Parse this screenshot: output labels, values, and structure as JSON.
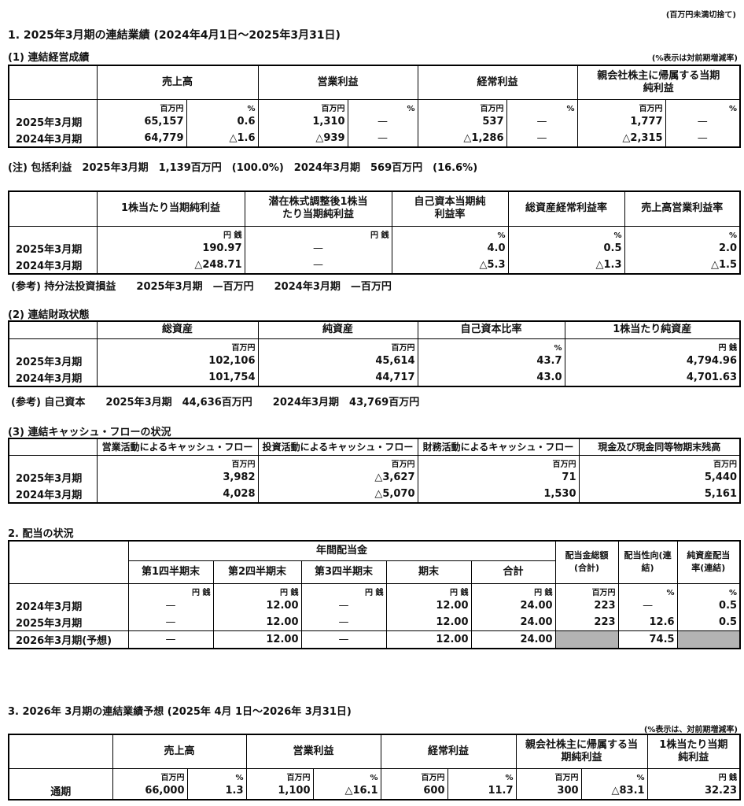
{
  "top_note": "(百万円未満切捨て)",
  "section1": {
    "title": "1. 2025年3月期の連結業績 (2024年4月1日～2025年3月31日)",
    "sub1_title": "(1) 連結経営成績",
    "sub1_note": "(%表示は対前期増減率)",
    "t1": {
      "headers": [
        "売上高",
        "営業利益",
        "経常利益",
        "親会社株主に帰属する当期純利益"
      ],
      "units": [
        "",
        "百万円",
        "%",
        "百万円",
        "%",
        "百万円",
        "%",
        "百万円",
        "%"
      ],
      "rows": [
        {
          "label": "2025年3月期",
          "values": [
            "65,157",
            "0.6",
            "1,310",
            "—",
            "537",
            "—",
            "1,777",
            "—"
          ]
        },
        {
          "label": "2024年3月期",
          "values": [
            "64,779",
            "△1.6",
            "△939",
            "—",
            "△1,286",
            "—",
            "△2,315",
            "—"
          ]
        }
      ]
    },
    "note": "(注) 包括利益　2025年3月期　1,139百万円　(100.0%)　2024年3月期　569百万円　(16.6%)",
    "t2": {
      "headers": [
        "1株当たり当期純利益",
        "潜在株式調整後1株当たり当期純利益",
        "自己資本当期純利益率",
        "総資産経常利益率",
        "売上高営業利益率"
      ],
      "units": [
        "",
        "円 銭",
        "円 銭",
        "%",
        "%",
        "%"
      ],
      "rows": [
        {
          "label": "2025年3月期",
          "values": [
            "190.97",
            "—",
            "4.0",
            "0.5",
            "2.0"
          ]
        },
        {
          "label": "2024年3月期",
          "values": [
            "△248.71",
            "—",
            "△5.3",
            "△1.3",
            "△1.5"
          ]
        }
      ]
    },
    "ref1": "(参考) 持分法投資損益　　2025年3月期　—百万円　　2024年3月期　—百万円",
    "sub2_title": "(2) 連結財政状態",
    "t3": {
      "headers": [
        "総資産",
        "純資産",
        "自己資本比率",
        "1株当たり純資産"
      ],
      "units": [
        "",
        "百万円",
        "百万円",
        "%",
        "円 銭"
      ],
      "rows": [
        {
          "label": "2025年3月期",
          "values": [
            "102,106",
            "45,614",
            "43.7",
            "4,794.96"
          ]
        },
        {
          "label": "2024年3月期",
          "values": [
            "101,754",
            "44,717",
            "43.0",
            "4,701.63"
          ]
        }
      ]
    },
    "ref2": "(参考) 自己資本　　2025年3月期　44,636百万円　　2024年3月期　43,769百万円",
    "sub3_title": "(3) 連結キャッシュ・フローの状況",
    "t4": {
      "headers": [
        "営業活動によるキャッシュ・フロー",
        "投資活動によるキャッシュ・フロー",
        "財務活動によるキャッシュ・フロー",
        "現金及び現金同等物期末残高"
      ],
      "units": [
        "",
        "百万円",
        "百万円",
        "百万円",
        "百万円"
      ],
      "rows": [
        {
          "label": "2025年3月期",
          "values": [
            "3,982",
            "△3,627",
            "71",
            "5,440"
          ]
        },
        {
          "label": "2024年3月期",
          "values": [
            "4,028",
            "△5,070",
            "1,530",
            "5,161"
          ]
        }
      ]
    }
  },
  "section2": {
    "title": "2. 配当の状況",
    "t5": {
      "group_header": "年間配当金",
      "headers": [
        "第1四半期末",
        "第2四半期末",
        "第3四半期末",
        "期末",
        "合計"
      ],
      "side_headers": [
        "配当金総額(合計)",
        "配当性向(連結)",
        "純資産配当率(連結)"
      ],
      "units": [
        "",
        "円 銭",
        "円 銭",
        "円 銭",
        "円 銭",
        "円 銭",
        "百万円",
        "%",
        "%"
      ],
      "rows": [
        {
          "label": "2024年3月期",
          "values": [
            "—",
            "12.00",
            "—",
            "12.00",
            "24.00",
            "223",
            "—",
            "0.5"
          ]
        },
        {
          "label": "2025年3月期",
          "values": [
            "—",
            "12.00",
            "—",
            "12.00",
            "24.00",
            "223",
            "12.6",
            "0.5"
          ]
        }
      ],
      "forecast_row": {
        "label": "2026年3月期(予想)",
        "values": [
          "—",
          "12.00",
          "—",
          "12.00",
          "24.00",
          null,
          "74.5",
          null
        ]
      }
    }
  },
  "section3": {
    "title": "3. 2026年 3月期の連結業績予想 (2025年 4月 1日～2026年 3月31日)",
    "note": "(%表示は、対前期増減率)",
    "t6": {
      "headers": [
        "売上高",
        "営業利益",
        "経常利益",
        "親会社株主に帰属する当期純利益",
        "1株当たり当期純利益"
      ],
      "units": [
        "",
        "百万円",
        "%",
        "百万円",
        "%",
        "百万円",
        "%",
        "百万円",
        "%",
        "円 銭"
      ],
      "rows": [
        {
          "label": "通期",
          "values": [
            "66,000",
            "1.3",
            "1,100",
            "△16.1",
            "600",
            "11.7",
            "300",
            "△83.1",
            "32.23"
          ]
        }
      ]
    }
  }
}
